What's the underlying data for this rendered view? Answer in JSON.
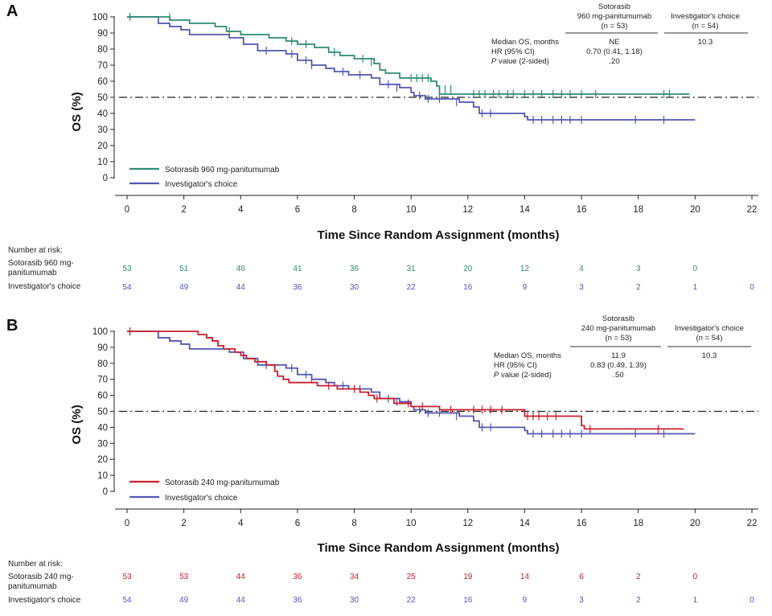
{
  "chart_data": [
    {
      "type": "line",
      "panel": "A",
      "ylabel": "OS (%)",
      "xlabel": "Time Since Random Assignment (months)",
      "xlim": [
        0,
        22
      ],
      "ylim": [
        0,
        100
      ],
      "xticks": [
        0,
        2,
        4,
        6,
        8,
        10,
        12,
        14,
        16,
        18,
        20,
        22
      ],
      "yticks": [
        100,
        90,
        80,
        70,
        60,
        50,
        40,
        30,
        20,
        10,
        0
      ],
      "reference_line_y": 50,
      "legend_position": "bottom-left",
      "series": [
        {
          "name": "Sotorasib 960 mg-panitumumab",
          "color": "#2E8B74",
          "steps": [
            [
              0,
              100
            ],
            [
              1.5,
              98
            ],
            [
              2.2,
              96
            ],
            [
              3.1,
              94
            ],
            [
              3.5,
              91
            ],
            [
              4.0,
              89
            ],
            [
              5.0,
              87
            ],
            [
              5.6,
              85
            ],
            [
              6.0,
              83
            ],
            [
              6.6,
              81
            ],
            [
              7.1,
              78
            ],
            [
              7.5,
              76
            ],
            [
              8.0,
              74
            ],
            [
              8.7,
              71
            ],
            [
              8.9,
              67
            ],
            [
              9.1,
              65
            ],
            [
              9.6,
              62
            ],
            [
              10.7,
              60
            ],
            [
              10.9,
              57
            ],
            [
              11.0,
              52
            ],
            [
              19.8,
              52
            ]
          ],
          "censors": [
            [
              0.1,
              100
            ],
            [
              1.5,
              100
            ],
            [
              3.6,
              91
            ],
            [
              5.8,
              85
            ],
            [
              6.3,
              83
            ],
            [
              7.3,
              78
            ],
            [
              8.3,
              74
            ],
            [
              8.6,
              72
            ],
            [
              10.0,
              62
            ],
            [
              10.2,
              62
            ],
            [
              10.4,
              62
            ],
            [
              10.6,
              62
            ],
            [
              11.2,
              55
            ],
            [
              11.4,
              55
            ],
            [
              12.2,
              52
            ],
            [
              12.4,
              52
            ],
            [
              12.6,
              52
            ],
            [
              12.9,
              52
            ],
            [
              13.1,
              52
            ],
            [
              13.4,
              52
            ],
            [
              13.6,
              52
            ],
            [
              14.0,
              52
            ],
            [
              14.3,
              52
            ],
            [
              14.6,
              52
            ],
            [
              15.0,
              52
            ],
            [
              15.3,
              52
            ],
            [
              15.6,
              52
            ],
            [
              16.0,
              52
            ],
            [
              16.5,
              52
            ],
            [
              18.9,
              52
            ],
            [
              19.1,
              52
            ]
          ]
        },
        {
          "name": "Investigator's choice",
          "color": "#5256B2",
          "steps": [
            [
              0,
              100
            ],
            [
              1.1,
              96
            ],
            [
              1.5,
              94
            ],
            [
              1.9,
              92
            ],
            [
              2.2,
              89
            ],
            [
              3.6,
              87
            ],
            [
              4.1,
              83
            ],
            [
              4.6,
              79
            ],
            [
              5.6,
              77
            ],
            [
              6.0,
              73
            ],
            [
              6.5,
              70
            ],
            [
              7.0,
              68
            ],
            [
              7.3,
              66
            ],
            [
              7.8,
              64
            ],
            [
              8.6,
              62
            ],
            [
              8.9,
              58
            ],
            [
              9.6,
              56
            ],
            [
              10.0,
              53
            ],
            [
              10.1,
              51
            ],
            [
              10.5,
              49
            ],
            [
              11.7,
              47
            ],
            [
              12.2,
              44
            ],
            [
              12.4,
              40
            ],
            [
              14.0,
              38
            ],
            [
              14.1,
              36
            ],
            [
              20.0,
              36
            ]
          ],
          "censors": [
            [
              0.1,
              100
            ],
            [
              4.9,
              79
            ],
            [
              5.8,
              77
            ],
            [
              6.3,
              73
            ],
            [
              6.5,
              70
            ],
            [
              7.6,
              66
            ],
            [
              8.2,
              64
            ],
            [
              9.2,
              58
            ],
            [
              9.5,
              56
            ],
            [
              10.3,
              51
            ],
            [
              10.6,
              49
            ],
            [
              11.0,
              49
            ],
            [
              11.6,
              47
            ],
            [
              12.5,
              40
            ],
            [
              12.8,
              40
            ],
            [
              14.3,
              36
            ],
            [
              14.6,
              36
            ],
            [
              15.0,
              36
            ],
            [
              15.3,
              36
            ],
            [
              15.6,
              36
            ],
            [
              16.0,
              36
            ],
            [
              17.9,
              36
            ],
            [
              18.9,
              36
            ]
          ]
        }
      ],
      "stats_table": {
        "col1_header_line1": "Sotorasib",
        "col1_header_line2": "960 mg-panitumumab",
        "col1_header_line3": "(n = 53)",
        "col2_header_line1": "Investigator's choice",
        "col2_header_line2": "(n = 54)",
        "row1_label": "Median OS, months",
        "row1_col1": "NE",
        "row1_col2": "10.3",
        "row2_label": "HR (95% CI)",
        "row2_col1": "0.70 (0.41, 1.18)",
        "row3_label_italic": "P",
        "row3_label_rest": " value (2-sided)",
        "row3_col1": ".20"
      },
      "number_at_risk": {
        "title": "Number at risk:",
        "timepoints": [
          0,
          2,
          4,
          6,
          8,
          10,
          12,
          14,
          16,
          18,
          20,
          22
        ],
        "rows": [
          {
            "label_line1": "Sotorasib 960 mg-",
            "label_line2": "panitumumab",
            "values": [
              "53",
              "51",
              "46",
              "41",
              "36",
              "31",
              "20",
              "12",
              "4",
              "3",
              "0"
            ]
          },
          {
            "label_line1": "Investigator's choice",
            "label_line2": "",
            "values": [
              "54",
              "49",
              "44",
              "36",
              "30",
              "22",
              "16",
              "9",
              "3",
              "2",
              "1",
              "0"
            ]
          }
        ]
      }
    },
    {
      "type": "line",
      "panel": "B",
      "ylabel": "OS (%)",
      "xlabel": "Time Since Random Assignment (months)",
      "xlim": [
        0,
        22
      ],
      "ylim": [
        0,
        100
      ],
      "xticks": [
        0,
        2,
        4,
        6,
        8,
        10,
        12,
        14,
        16,
        18,
        20,
        22
      ],
      "yticks": [
        100,
        90,
        80,
        70,
        60,
        50,
        40,
        30,
        20,
        10,
        0
      ],
      "reference_line_y": 50,
      "legend_position": "bottom-left",
      "series": [
        {
          "name": "Sotorasib 240 mg-panitumumab",
          "color": "#C8202E",
          "steps": [
            [
              0,
              100
            ],
            [
              2.5,
              98
            ],
            [
              2.8,
              96
            ],
            [
              3.0,
              94
            ],
            [
              3.2,
              91
            ],
            [
              3.4,
              89
            ],
            [
              3.8,
              87
            ],
            [
              4.0,
              85
            ],
            [
              4.2,
              83
            ],
            [
              4.5,
              81
            ],
            [
              4.9,
              79
            ],
            [
              5.2,
              75
            ],
            [
              5.3,
              72
            ],
            [
              5.5,
              70
            ],
            [
              5.7,
              68
            ],
            [
              6.7,
              66
            ],
            [
              7.4,
              64
            ],
            [
              8.2,
              62
            ],
            [
              8.5,
              60
            ],
            [
              8.7,
              58
            ],
            [
              9.4,
              55
            ],
            [
              10.0,
              53
            ],
            [
              11.0,
              51
            ],
            [
              11.3,
              51
            ],
            [
              14.0,
              47
            ],
            [
              16.0,
              41
            ],
            [
              16.1,
              39
            ],
            [
              19.6,
              39
            ]
          ],
          "censors": [
            [
              0.1,
              100
            ],
            [
              7.1,
              66
            ],
            [
              8.0,
              64
            ],
            [
              8.8,
              58
            ],
            [
              9.9,
              55
            ],
            [
              10.4,
              53
            ],
            [
              11.4,
              51
            ],
            [
              12.2,
              51
            ],
            [
              12.5,
              51
            ],
            [
              12.8,
              51
            ],
            [
              13.2,
              51
            ],
            [
              14.1,
              47
            ],
            [
              14.3,
              47
            ],
            [
              14.5,
              47
            ],
            [
              14.8,
              47
            ],
            [
              15.1,
              47
            ],
            [
              16.3,
              39
            ],
            [
              18.7,
              39
            ]
          ]
        },
        {
          "name": "Investigator's choice",
          "color": "#5256B2",
          "steps": [
            [
              0,
              100
            ],
            [
              1.1,
              96
            ],
            [
              1.5,
              94
            ],
            [
              1.9,
              92
            ],
            [
              2.2,
              89
            ],
            [
              3.6,
              87
            ],
            [
              4.1,
              83
            ],
            [
              4.6,
              79
            ],
            [
              5.6,
              77
            ],
            [
              6.0,
              73
            ],
            [
              6.5,
              70
            ],
            [
              7.0,
              68
            ],
            [
              7.3,
              66
            ],
            [
              7.8,
              64
            ],
            [
              8.6,
              62
            ],
            [
              8.9,
              58
            ],
            [
              9.6,
              56
            ],
            [
              10.0,
              53
            ],
            [
              10.1,
              51
            ],
            [
              10.5,
              49
            ],
            [
              11.7,
              47
            ],
            [
              12.2,
              44
            ],
            [
              12.4,
              40
            ],
            [
              14.0,
              38
            ],
            [
              14.1,
              36
            ],
            [
              20.0,
              36
            ]
          ],
          "censors": [
            [
              0.1,
              100
            ],
            [
              4.9,
              79
            ],
            [
              5.8,
              77
            ],
            [
              6.3,
              73
            ],
            [
              6.5,
              70
            ],
            [
              7.6,
              66
            ],
            [
              8.2,
              64
            ],
            [
              9.2,
              58
            ],
            [
              9.5,
              56
            ],
            [
              10.3,
              51
            ],
            [
              10.6,
              49
            ],
            [
              11.0,
              49
            ],
            [
              11.6,
              47
            ],
            [
              12.5,
              40
            ],
            [
              12.8,
              40
            ],
            [
              14.3,
              36
            ],
            [
              14.6,
              36
            ],
            [
              15.0,
              36
            ],
            [
              15.3,
              36
            ],
            [
              15.6,
              36
            ],
            [
              16.0,
              36
            ],
            [
              17.9,
              36
            ],
            [
              18.9,
              36
            ]
          ]
        }
      ],
      "stats_table": {
        "col1_header_line1": "Sotorasib",
        "col1_header_line2": "240 mg-panitumumab",
        "col1_header_line3": "(n = 53)",
        "col2_header_line1": "Investigator's choice",
        "col2_header_line2": "(n = 54)",
        "row1_label": "Median OS, months",
        "row1_col1": "11.9",
        "row1_col2": "10.3",
        "row2_label": "HR (95% CI)",
        "row2_col1": "0.83 (0.49, 1.39)",
        "row3_label_italic": "P",
        "row3_label_rest": " value (2-sided)",
        "row3_col1": ".50"
      },
      "number_at_risk": {
        "title": "Number at risk:",
        "timepoints": [
          0,
          2,
          4,
          6,
          8,
          10,
          12,
          14,
          16,
          18,
          20,
          22
        ],
        "rows": [
          {
            "label_line1": "Sotorasib 240 mg-",
            "label_line2": "panitumumab",
            "values": [
              "53",
              "53",
              "44",
              "36",
              "34",
              "25",
              "19",
              "14",
              "6",
              "2",
              "0"
            ]
          },
          {
            "label_line1": "Investigator's choice",
            "label_line2": "",
            "values": [
              "54",
              "49",
              "44",
              "36",
              "30",
              "22",
              "16",
              "9",
              "3",
              "2",
              "1",
              "0"
            ]
          }
        ]
      }
    }
  ]
}
